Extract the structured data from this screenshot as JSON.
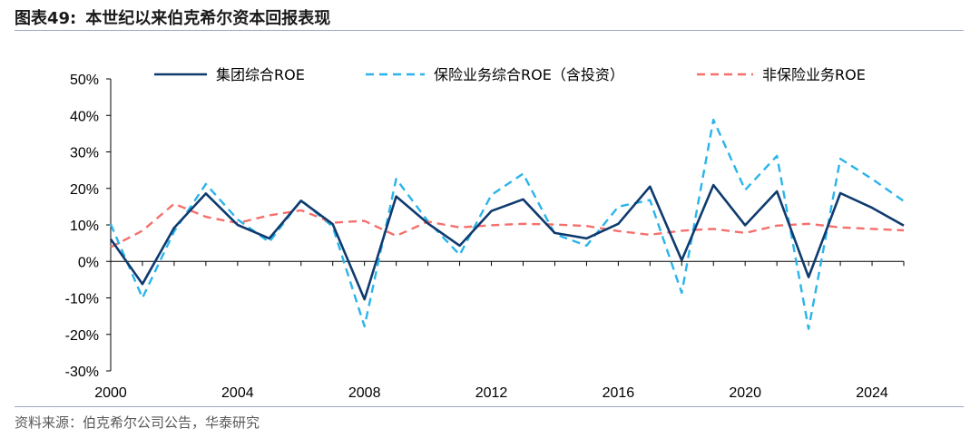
{
  "header": {
    "figure_no": "图表49:",
    "title": "本世纪以来伯克希尔资本回报表现"
  },
  "footer": {
    "source": "资料来源：伯克希尔公司公告，华泰研究"
  },
  "chart_data": {
    "type": "line",
    "title": "本世纪以来伯克希尔资本回报表现",
    "xlabel": "",
    "ylabel": "",
    "x": [
      2000,
      2001,
      2002,
      2003,
      2004,
      2005,
      2006,
      2007,
      2008,
      2009,
      2010,
      2011,
      2012,
      2013,
      2014,
      2015,
      2016,
      2017,
      2018,
      2019,
      2020,
      2021,
      2022,
      2023,
      2024,
      2025
    ],
    "xlim": [
      2000,
      2025
    ],
    "x_ticks": [
      2000,
      2004,
      2008,
      2012,
      2016,
      2020,
      2024
    ],
    "ylim": [
      -30,
      50
    ],
    "y_ticks": [
      -30,
      -20,
      -10,
      0,
      10,
      20,
      30,
      40,
      50
    ],
    "y_unit": "%",
    "grid": false,
    "legend_position": "top",
    "series": [
      {
        "name": "集团综合ROE",
        "color": "#0e3a6e",
        "dash": "solid",
        "values": [
          6.1,
          -6.2,
          9.2,
          18.6,
          10.0,
          6.3,
          16.6,
          10.2,
          -10.4,
          17.8,
          10.4,
          4.3,
          13.8,
          17.0,
          7.8,
          6.3,
          10.3,
          20.5,
          0.3,
          20.9,
          9.9,
          19.2,
          -4.3,
          18.7,
          14.7,
          9.8
        ]
      },
      {
        "name": "保险业务综合ROE（含投资）",
        "color": "#2ab4ea",
        "dash": "dashed",
        "values": [
          10.2,
          -10.0,
          8.2,
          21.2,
          11.5,
          5.3,
          16.8,
          9.5,
          -17.8,
          22.6,
          11.0,
          1.8,
          18.2,
          24.0,
          7.5,
          4.3,
          15.0,
          16.8,
          -8.6,
          38.8,
          19.6,
          28.9,
          -18.5,
          28.1,
          22.6,
          16.5
        ]
      },
      {
        "name": "非保险业务ROE",
        "color": "#f4706d",
        "dash": "dashed",
        "values": [
          3.9,
          8.4,
          15.8,
          12.2,
          10.5,
          12.6,
          14.0,
          10.6,
          11.1,
          7.0,
          10.9,
          9.3,
          9.9,
          10.3,
          10.1,
          9.7,
          8.3,
          7.3,
          8.4,
          8.9,
          7.8,
          9.8,
          10.3,
          9.3,
          8.9,
          8.5
        ]
      }
    ]
  }
}
